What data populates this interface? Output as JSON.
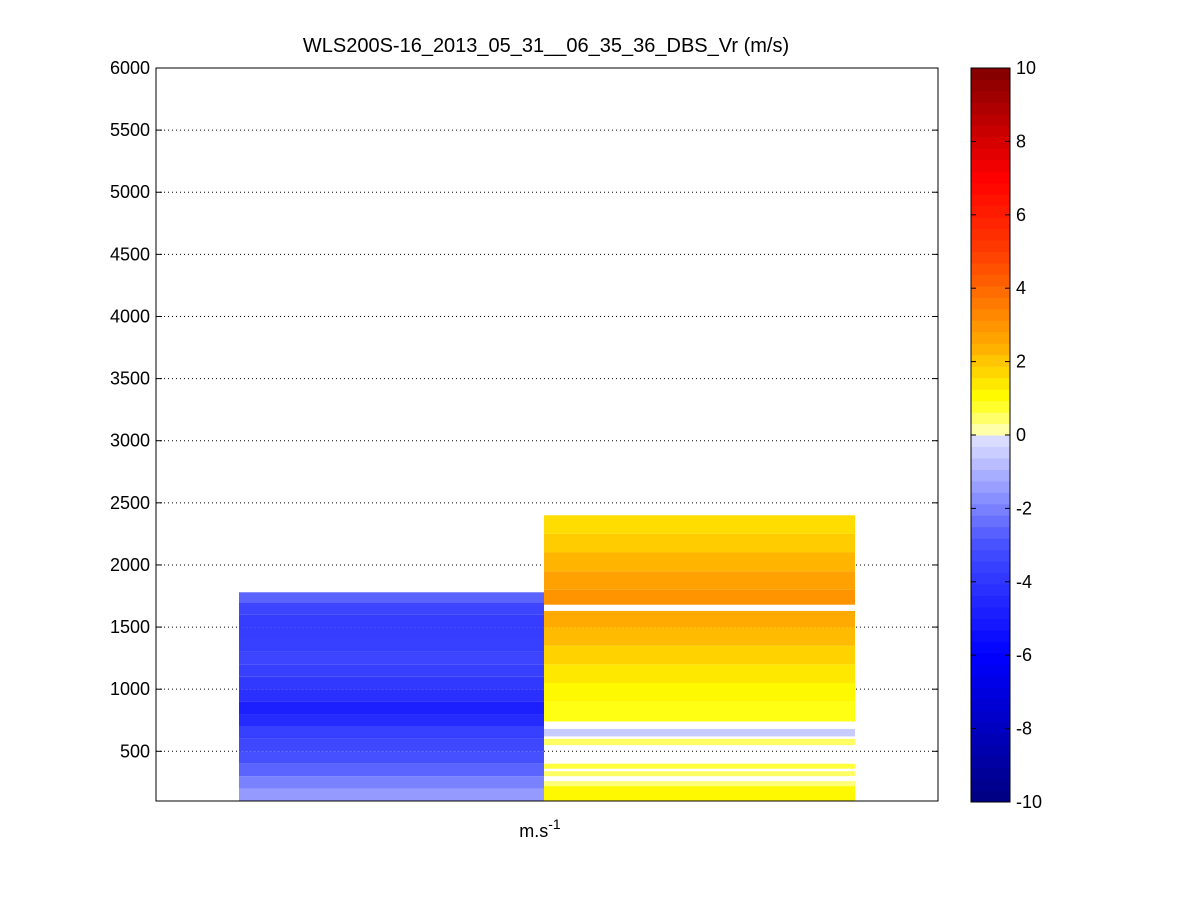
{
  "chart_data": {
    "type": "heatmap",
    "title": "WLS200S-16_2013_05_31__06_35_36_DBS_Vr (m/s)",
    "xlabel_base": "m.s",
    "xlabel_sup": "-1",
    "ylabel": "",
    "ylim": [
      100,
      6000
    ],
    "yticks": [
      500,
      1000,
      1500,
      2000,
      2500,
      3000,
      3500,
      4000,
      4500,
      5000,
      5500,
      6000
    ],
    "grid": "horizontal dotted",
    "colorbar": {
      "range": [
        -10,
        10
      ],
      "ticks": [
        -10,
        -8,
        -6,
        -4,
        -2,
        0,
        2,
        4,
        6,
        8,
        10
      ],
      "colormap": "blue-white-red diverging"
    },
    "columns": [
      {
        "name": "left",
        "cells": [
          {
            "z0": 100,
            "z1": 200,
            "v": -1.5
          },
          {
            "z0": 200,
            "z1": 300,
            "v": -2.0
          },
          {
            "z0": 300,
            "z1": 400,
            "v": -2.6
          },
          {
            "z0": 400,
            "z1": 500,
            "v": -3.0
          },
          {
            "z0": 500,
            "z1": 600,
            "v": -3.3
          },
          {
            "z0": 600,
            "z1": 700,
            "v": -3.6
          },
          {
            "z0": 700,
            "z1": 800,
            "v": -4.4
          },
          {
            "z0": 800,
            "z1": 900,
            "v": -4.8
          },
          {
            "z0": 900,
            "z1": 1000,
            "v": -4.2
          },
          {
            "z0": 1000,
            "z1": 1100,
            "v": -3.9
          },
          {
            "z0": 1100,
            "z1": 1200,
            "v": -3.6
          },
          {
            "z0": 1200,
            "z1": 1300,
            "v": -3.4
          },
          {
            "z0": 1300,
            "z1": 1400,
            "v": -3.6
          },
          {
            "z0": 1400,
            "z1": 1500,
            "v": -3.7
          },
          {
            "z0": 1500,
            "z1": 1600,
            "v": -3.7
          },
          {
            "z0": 1600,
            "z1": 1700,
            "v": -3.4
          },
          {
            "z0": 1700,
            "z1": 1780,
            "v": -2.6
          }
        ]
      },
      {
        "name": "right",
        "cells": [
          {
            "z0": 100,
            "z1": 220,
            "v": 1.1
          },
          {
            "z0": 220,
            "z1": 260,
            "v": 0.4
          },
          {
            "z0": 300,
            "z1": 340,
            "v": 0.5
          },
          {
            "z0": 360,
            "z1": 400,
            "v": 0.7
          },
          {
            "z0": 550,
            "z1": 600,
            "v": 0.5
          },
          {
            "z0": 620,
            "z1": 680,
            "v": -0.5
          },
          {
            "z0": 740,
            "z1": 900,
            "v": 0.9
          },
          {
            "z0": 900,
            "z1": 1050,
            "v": 1.1
          },
          {
            "z0": 1050,
            "z1": 1200,
            "v": 1.4
          },
          {
            "z0": 1200,
            "z1": 1350,
            "v": 1.8
          },
          {
            "z0": 1350,
            "z1": 1500,
            "v": 2.2
          },
          {
            "z0": 1500,
            "z1": 1630,
            "v": 2.5
          },
          {
            "z0": 1680,
            "z1": 1800,
            "v": 3.0
          },
          {
            "z0": 1800,
            "z1": 1950,
            "v": 2.7
          },
          {
            "z0": 1950,
            "z1": 2100,
            "v": 2.3
          },
          {
            "z0": 2100,
            "z1": 2250,
            "v": 1.9
          },
          {
            "z0": 2250,
            "z1": 2400,
            "v": 1.6
          }
        ]
      }
    ]
  }
}
